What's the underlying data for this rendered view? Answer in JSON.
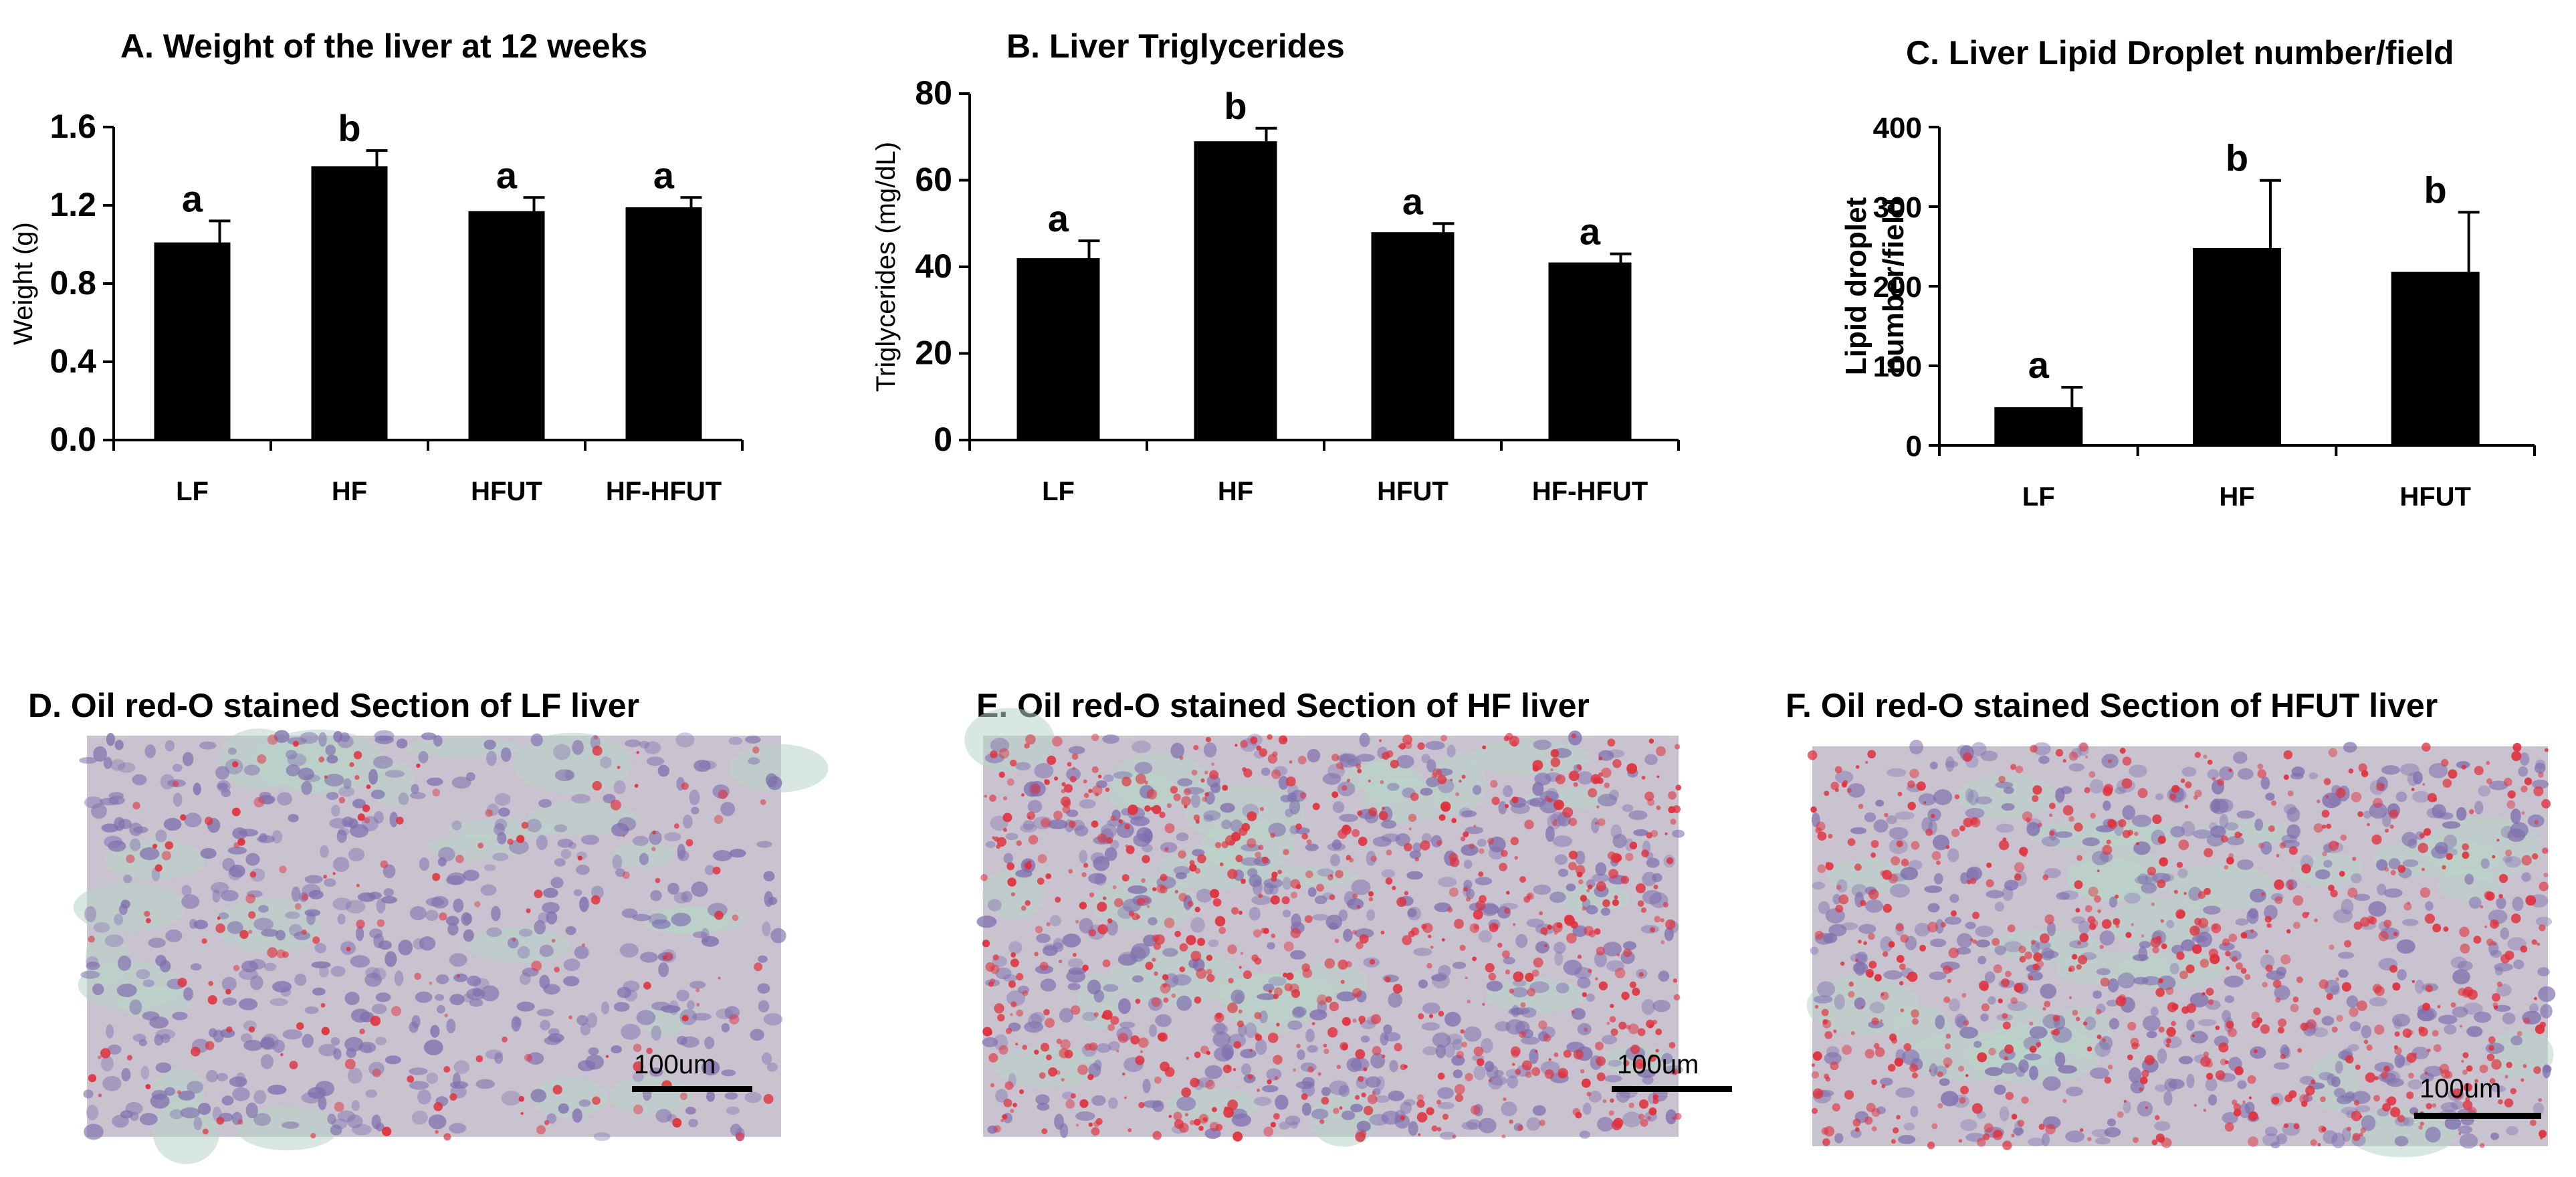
{
  "chart_data": [
    {
      "type": "bar",
      "title": "A. Weight of the liver at 12 weeks",
      "ylabel": "Weight (g)",
      "xlabel": "",
      "categories": [
        "LF",
        "HF",
        "HFUT",
        "HF-HFUT"
      ],
      "values": [
        1.01,
        1.4,
        1.17,
        1.19
      ],
      "errors": [
        0.11,
        0.08,
        0.07,
        0.05
      ],
      "sig_letters": [
        "a",
        "b",
        "a",
        "a"
      ],
      "ylim": [
        0,
        1.6
      ],
      "yticks": [
        "0.0",
        "0.4",
        "0.8",
        "1.2",
        "1.6"
      ],
      "bar_color": "#000000",
      "grid": false
    },
    {
      "type": "bar",
      "title": "B. Liver Triglycerides",
      "ylabel": "Triglycerides (mg/dL)",
      "xlabel": "",
      "categories": [
        "LF",
        "HF",
        "HFUT",
        "HF-HFUT"
      ],
      "values": [
        42,
        69,
        48,
        41
      ],
      "errors": [
        4,
        3,
        2,
        2
      ],
      "sig_letters": [
        "a",
        "b",
        "a",
        "a"
      ],
      "ylim": [
        0,
        80
      ],
      "yticks": [
        "0",
        "20",
        "40",
        "60",
        "80"
      ],
      "bar_color": "#000000",
      "grid": false
    },
    {
      "type": "bar",
      "title": "C. Liver Lipid Droplet number/field",
      "ylabel": "Lipid droplet number/field",
      "ylabel_lines": [
        "Lipid droplet",
        "number/field"
      ],
      "xlabel": "",
      "categories": [
        "LF",
        "HF",
        "HFUT"
      ],
      "values": [
        48,
        248,
        218
      ],
      "errors": [
        25,
        85,
        75
      ],
      "sig_letters": [
        "a",
        "b",
        "b"
      ],
      "ylim": [
        0,
        400
      ],
      "yticks": [
        "0",
        "100",
        "200",
        "300",
        "400"
      ],
      "bar_color": "#000000",
      "grid": false
    }
  ],
  "panels": [
    {
      "title": "D. Oil red-O stained Section of LF liver",
      "scale_label": "100um",
      "red_density": 0.12
    },
    {
      "title": "E. Oil red-O stained Section of HF liver",
      "scale_label": "100um",
      "red_density": 0.55
    },
    {
      "title": "F. Oil red-O stained Section of HFUT liver",
      "scale_label": "100um",
      "red_density": 0.5
    }
  ],
  "colors": {
    "tissue_base": "#c9c3cf",
    "nucleus": "#7f6fae",
    "lipid_red": "#e0303c",
    "sinusoid": "#b8d4c8"
  }
}
